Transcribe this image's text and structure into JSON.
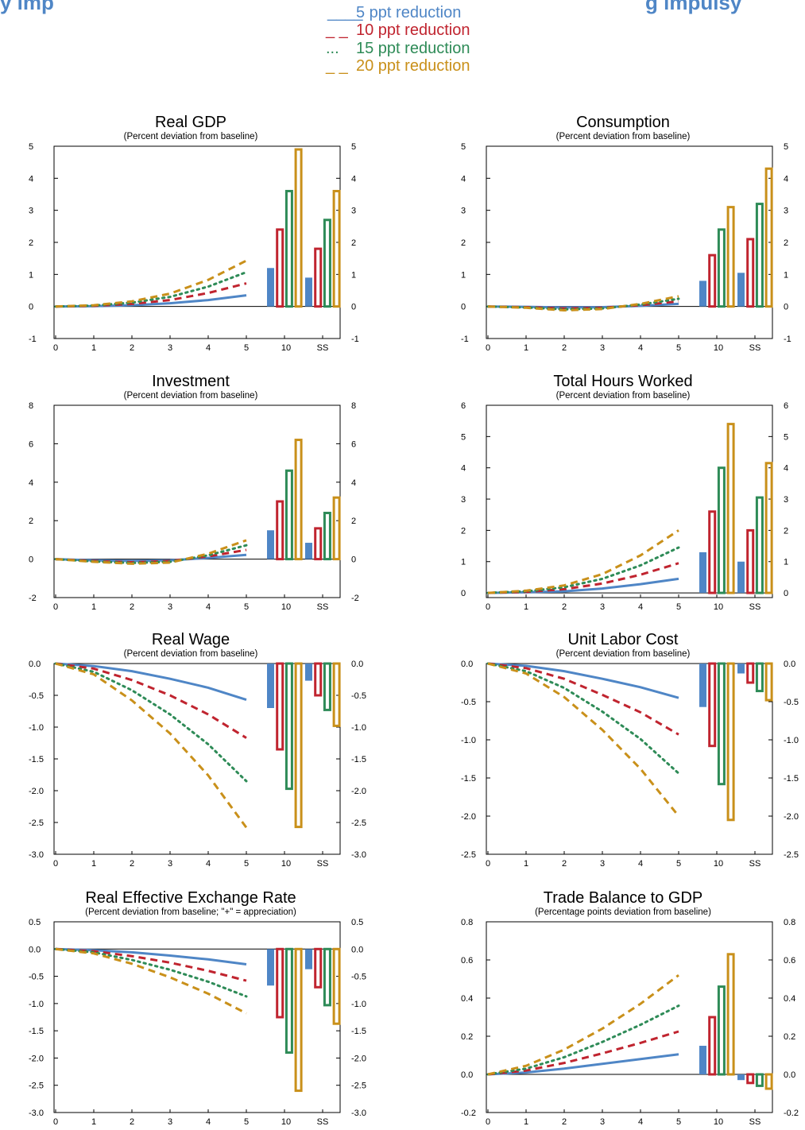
{
  "header_fragment": {
    "left": "y imp",
    "right": "g  impulsy"
  },
  "colors": {
    "blue": "#4f86c6",
    "red": "#c0242f",
    "green": "#2e8b57",
    "gold": "#c9901a",
    "header": "#4f86c6"
  },
  "legend": [
    {
      "prefix": "____",
      "label": "5 ppt reduction",
      "color": "blue",
      "style": "solid"
    },
    {
      "prefix": "_ _",
      "label": "10 ppt reduction",
      "color": "red",
      "style": "dashed"
    },
    {
      "prefix": "...",
      "label": "15 ppt reduction",
      "color": "green",
      "style": "dotted"
    },
    {
      "prefix": "_ _",
      "label": "20 ppt reduction",
      "color": "gold",
      "style": "dashed"
    }
  ],
  "chart_data": [
    {
      "type": "line+bar",
      "title": "Real GDP",
      "subtitle": "(Percent deviation from baseline)",
      "x_categories": [
        "0",
        "1",
        "2",
        "3",
        "4",
        "5",
        "10",
        "SS"
      ],
      "ylim": [
        -1,
        5
      ],
      "yticks": [
        "-1",
        "0",
        "1",
        "2",
        "3",
        "4",
        "5"
      ],
      "ytick_values": [
        -1,
        0,
        1,
        2,
        3,
        4,
        5
      ],
      "line_series": [
        {
          "name": "5 ppt reduction",
          "x": [
            0,
            1,
            2,
            3,
            4,
            5
          ],
          "y": [
            0,
            0.01,
            0.04,
            0.1,
            0.2,
            0.35
          ]
        },
        {
          "name": "10 ppt reduction",
          "x": [
            0,
            1,
            2,
            3,
            4,
            5
          ],
          "y": [
            0,
            0.02,
            0.08,
            0.2,
            0.42,
            0.72
          ]
        },
        {
          "name": "15 ppt reduction",
          "x": [
            0,
            1,
            2,
            3,
            4,
            5
          ],
          "y": [
            0,
            0.03,
            0.12,
            0.3,
            0.62,
            1.07
          ]
        },
        {
          "name": "20 ppt reduction",
          "x": [
            0,
            1,
            2,
            3,
            4,
            5
          ],
          "y": [
            0,
            0.04,
            0.16,
            0.4,
            0.83,
            1.43
          ]
        }
      ],
      "bars": {
        "10": [
          1.2,
          2.4,
          3.6,
          4.9
        ],
        "SS": [
          0.9,
          1.8,
          2.7,
          3.6
        ]
      }
    },
    {
      "type": "line+bar",
      "title": "Consumption",
      "subtitle": "(Percent deviation from baseline)",
      "x_categories": [
        "0",
        "1",
        "2",
        "3",
        "4",
        "5",
        "10",
        "SS"
      ],
      "ylim": [
        -1,
        5
      ],
      "yticks": [
        "-1",
        "0",
        "1",
        "2",
        "3",
        "4",
        "5"
      ],
      "ytick_values": [
        -1,
        0,
        1,
        2,
        3,
        4,
        5
      ],
      "line_series": [
        {
          "name": "5 ppt reduction",
          "x": [
            0,
            1,
            2,
            3,
            4,
            5
          ],
          "y": [
            0,
            -0.01,
            -0.03,
            -0.02,
            0.02,
            0.08
          ]
        },
        {
          "name": "10 ppt reduction",
          "x": [
            0,
            1,
            2,
            3,
            4,
            5
          ],
          "y": [
            0,
            -0.02,
            -0.06,
            -0.04,
            0.04,
            0.16
          ]
        },
        {
          "name": "15 ppt reduction",
          "x": [
            0,
            1,
            2,
            3,
            4,
            5
          ],
          "y": [
            0,
            -0.03,
            -0.09,
            -0.06,
            0.06,
            0.24
          ]
        },
        {
          "name": "20 ppt reduction",
          "x": [
            0,
            1,
            2,
            3,
            4,
            5
          ],
          "y": [
            0,
            -0.04,
            -0.12,
            -0.08,
            0.08,
            0.32
          ]
        }
      ],
      "bars": {
        "10": [
          0.8,
          1.6,
          2.4,
          3.1
        ],
        "SS": [
          1.05,
          2.1,
          3.2,
          4.3
        ]
      }
    },
    {
      "type": "line+bar",
      "title": "Investment",
      "subtitle": "(Percent deviation from baseline)",
      "x_categories": [
        "0",
        "1",
        "2",
        "3",
        "4",
        "5",
        "10",
        "SS"
      ],
      "ylim": [
        -2,
        8
      ],
      "yticks": [
        "-2",
        "0",
        "2",
        "4",
        "6",
        "8"
      ],
      "ytick_values": [
        -2,
        0,
        2,
        4,
        6,
        8
      ],
      "line_series": [
        {
          "name": "5 ppt reduction",
          "x": [
            0,
            1,
            2,
            3,
            4,
            5
          ],
          "y": [
            0,
            -0.06,
            -0.09,
            -0.06,
            0.06,
            0.22
          ]
        },
        {
          "name": "10 ppt reduction",
          "x": [
            0,
            1,
            2,
            3,
            4,
            5
          ],
          "y": [
            0,
            -0.1,
            -0.16,
            -0.1,
            0.14,
            0.48
          ]
        },
        {
          "name": "15 ppt reduction",
          "x": [
            0,
            1,
            2,
            3,
            4,
            5
          ],
          "y": [
            0,
            -0.12,
            -0.2,
            -0.14,
            0.2,
            0.72
          ]
        },
        {
          "name": "20 ppt reduction",
          "x": [
            0,
            1,
            2,
            3,
            4,
            5
          ],
          "y": [
            0,
            -0.14,
            -0.24,
            -0.18,
            0.28,
            0.98
          ]
        }
      ],
      "bars": {
        "10": [
          1.5,
          3.0,
          4.6,
          6.2
        ],
        "SS": [
          0.85,
          1.6,
          2.4,
          3.2
        ]
      }
    },
    {
      "type": "line+bar",
      "title": "Total Hours Worked",
      "subtitle": "(Percent deviation from baseline)",
      "x_categories": [
        "0",
        "1",
        "2",
        "3",
        "4",
        "5",
        "10",
        "SS"
      ],
      "ylim": [
        -0.15,
        6
      ],
      "yticks": [
        "0",
        "1",
        "2",
        "3",
        "4",
        "5",
        "6"
      ],
      "ytick_values": [
        0,
        1,
        2,
        3,
        4,
        5,
        6
      ],
      "line_series": [
        {
          "name": "5 ppt reduction",
          "x": [
            0,
            1,
            2,
            3,
            4,
            5
          ],
          "y": [
            0,
            0.02,
            0.05,
            0.14,
            0.28,
            0.45
          ]
        },
        {
          "name": "10 ppt reduction",
          "x": [
            0,
            1,
            2,
            3,
            4,
            5
          ],
          "y": [
            0,
            0.03,
            0.12,
            0.3,
            0.58,
            0.95
          ]
        },
        {
          "name": "15 ppt reduction",
          "x": [
            0,
            1,
            2,
            3,
            4,
            5
          ],
          "y": [
            0,
            0.05,
            0.18,
            0.45,
            0.88,
            1.45
          ]
        },
        {
          "name": "20 ppt reduction",
          "x": [
            0,
            1,
            2,
            3,
            4,
            5
          ],
          "y": [
            0,
            0.07,
            0.24,
            0.6,
            1.2,
            2.0
          ]
        }
      ],
      "bars": {
        "10": [
          1.3,
          2.6,
          4.0,
          5.4
        ],
        "SS": [
          1.0,
          2.0,
          3.05,
          4.15
        ]
      }
    },
    {
      "type": "line+bar",
      "title": "Real Wage",
      "subtitle": "(Percent deviation from baseline)",
      "x_categories": [
        "0",
        "1",
        "2",
        "3",
        "4",
        "5",
        "10",
        "SS"
      ],
      "ylim": [
        -3,
        0
      ],
      "yticks": [
        "0.0",
        "-0.5",
        "-1.0",
        "-1.5",
        "-2.0",
        "-2.5",
        "-3.0"
      ],
      "ytick_values": [
        0,
        -0.5,
        -1.0,
        -1.5,
        -2.0,
        -2.5,
        -3.0
      ],
      "line_series": [
        {
          "name": "5 ppt reduction",
          "x": [
            0,
            1,
            2,
            3,
            4,
            5
          ],
          "y": [
            0,
            -0.04,
            -0.12,
            -0.24,
            -0.38,
            -0.57
          ]
        },
        {
          "name": "10 ppt reduction",
          "x": [
            0,
            1,
            2,
            3,
            4,
            5
          ],
          "y": [
            0,
            -0.08,
            -0.26,
            -0.5,
            -0.8,
            -1.17
          ]
        },
        {
          "name": "15 ppt reduction",
          "x": [
            0,
            1,
            2,
            3,
            4,
            5
          ],
          "y": [
            0,
            -0.13,
            -0.42,
            -0.8,
            -1.27,
            -1.85
          ]
        },
        {
          "name": "20 ppt reduction",
          "x": [
            0,
            1,
            2,
            3,
            4,
            5
          ],
          "y": [
            0,
            -0.17,
            -0.58,
            -1.1,
            -1.76,
            -2.58
          ]
        }
      ],
      "bars": {
        "10": [
          -0.7,
          -1.35,
          -1.97,
          -2.57
        ],
        "SS": [
          -0.27,
          -0.5,
          -0.73,
          -0.98
        ]
      }
    },
    {
      "type": "line+bar",
      "title": "Unit Labor Cost",
      "subtitle": "(Percent deviation from baseline)",
      "x_categories": [
        "0",
        "1",
        "2",
        "3",
        "4",
        "5",
        "10",
        "SS"
      ],
      "ylim": [
        -2.5,
        0
      ],
      "yticks": [
        "0.0",
        "-0.5",
        "-1.0",
        "-1.5",
        "-2.0",
        "-2.5"
      ],
      "ytick_values": [
        0,
        -0.5,
        -1.0,
        -1.5,
        -2.0,
        -2.5
      ],
      "line_series": [
        {
          "name": "5 ppt reduction",
          "x": [
            0,
            1,
            2,
            3,
            4,
            5
          ],
          "y": [
            0,
            -0.03,
            -0.1,
            -0.2,
            -0.31,
            -0.45
          ]
        },
        {
          "name": "10 ppt reduction",
          "x": [
            0,
            1,
            2,
            3,
            4,
            5
          ],
          "y": [
            0,
            -0.06,
            -0.2,
            -0.41,
            -0.64,
            -0.93
          ]
        },
        {
          "name": "15 ppt reduction",
          "x": [
            0,
            1,
            2,
            3,
            4,
            5
          ],
          "y": [
            0,
            -0.1,
            -0.32,
            -0.63,
            -0.99,
            -1.44
          ]
        },
        {
          "name": "20 ppt reduction",
          "x": [
            0,
            1,
            2,
            3,
            4,
            5
          ],
          "y": [
            0,
            -0.13,
            -0.44,
            -0.87,
            -1.38,
            -2.0
          ]
        }
      ],
      "bars": {
        "10": [
          -0.57,
          -1.08,
          -1.58,
          -2.05
        ],
        "SS": [
          -0.13,
          -0.25,
          -0.36,
          -0.48
        ]
      }
    },
    {
      "type": "line+bar",
      "title": "Real Effective Exchange Rate",
      "subtitle": "(Percent deviation from baseline; \"+\" = appreciation)",
      "x_categories": [
        "0",
        "1",
        "2",
        "3",
        "4",
        "5",
        "10",
        "SS"
      ],
      "ylim": [
        -3,
        0.5
      ],
      "yticks": [
        "0.5",
        "0.0",
        "-0.5",
        "-1.0",
        "-1.5",
        "-2.0",
        "-2.5",
        "-3.0"
      ],
      "ytick_values": [
        0.5,
        0,
        -0.5,
        -1.0,
        -1.5,
        -2.0,
        -2.5,
        -3.0
      ],
      "line_series": [
        {
          "name": "5 ppt reduction",
          "x": [
            0,
            1,
            2,
            3,
            4,
            5
          ],
          "y": [
            0,
            -0.02,
            -0.06,
            -0.12,
            -0.19,
            -0.28
          ]
        },
        {
          "name": "10 ppt reduction",
          "x": [
            0,
            1,
            2,
            3,
            4,
            5
          ],
          "y": [
            0,
            -0.04,
            -0.13,
            -0.25,
            -0.4,
            -0.58
          ]
        },
        {
          "name": "15 ppt reduction",
          "x": [
            0,
            1,
            2,
            3,
            4,
            5
          ],
          "y": [
            0,
            -0.06,
            -0.2,
            -0.38,
            -0.6,
            -0.87
          ]
        },
        {
          "name": "20 ppt reduction",
          "x": [
            0,
            1,
            2,
            3,
            4,
            5
          ],
          "y": [
            0,
            -0.08,
            -0.27,
            -0.52,
            -0.82,
            -1.18
          ]
        }
      ],
      "bars": {
        "10": [
          -0.67,
          -1.25,
          -1.9,
          -2.6
        ],
        "SS": [
          -0.37,
          -0.7,
          -1.03,
          -1.37
        ]
      }
    },
    {
      "type": "line+bar",
      "title": "Trade Balance to GDP",
      "subtitle": "(Percentage points deviation from baseline)",
      "x_categories": [
        "0",
        "1",
        "2",
        "3",
        "4",
        "5",
        "10",
        "SS"
      ],
      "ylim": [
        -0.2,
        0.8
      ],
      "yticks": [
        "-0.2",
        "0.0",
        "0.2",
        "0.4",
        "0.6",
        "0.8"
      ],
      "ytick_values": [
        -0.2,
        0,
        0.2,
        0.4,
        0.6,
        0.8
      ],
      "line_series": [
        {
          "name": "5 ppt reduction",
          "x": [
            0,
            1,
            2,
            3,
            4,
            5
          ],
          "y": [
            0,
            0.01,
            0.03,
            0.055,
            0.08,
            0.105
          ]
        },
        {
          "name": "10 ppt reduction",
          "x": [
            0,
            1,
            2,
            3,
            4,
            5
          ],
          "y": [
            0,
            0.02,
            0.06,
            0.11,
            0.165,
            0.225
          ]
        },
        {
          "name": "15 ppt reduction",
          "x": [
            0,
            1,
            2,
            3,
            4,
            5
          ],
          "y": [
            0,
            0.03,
            0.09,
            0.17,
            0.26,
            0.36
          ]
        },
        {
          "name": "20 ppt reduction",
          "x": [
            0,
            1,
            2,
            3,
            4,
            5
          ],
          "y": [
            0,
            0.045,
            0.13,
            0.24,
            0.37,
            0.52
          ]
        }
      ],
      "bars": {
        "10": [
          0.15,
          0.3,
          0.46,
          0.63
        ],
        "SS": [
          -0.03,
          -0.045,
          -0.06,
          -0.075
        ]
      }
    }
  ]
}
